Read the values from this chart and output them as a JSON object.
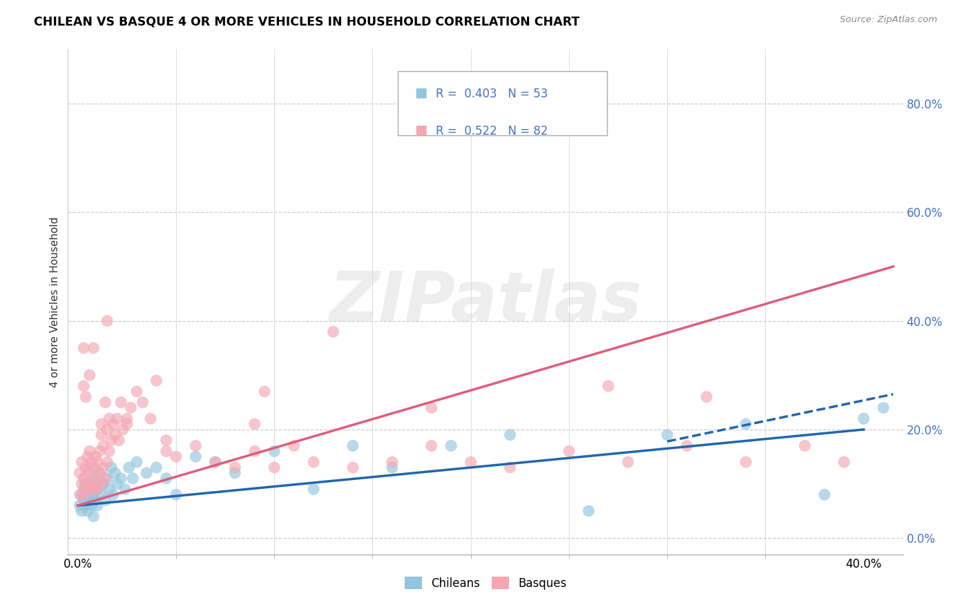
{
  "title": "CHILEAN VS BASQUE 4 OR MORE VEHICLES IN HOUSEHOLD CORRELATION CHART",
  "source": "Source: ZipAtlas.com",
  "ylabel": "4 or more Vehicles in Household",
  "xlim": [
    -0.005,
    0.42
  ],
  "ylim": [
    -0.03,
    0.9
  ],
  "xtick_labels_pos": [
    0.0,
    0.4
  ],
  "xtick_minor_pos": [
    0.05,
    0.1,
    0.15,
    0.2,
    0.25,
    0.3,
    0.35
  ],
  "yticks_right": [
    0.0,
    0.2,
    0.4,
    0.6,
    0.8
  ],
  "chilean_color": "#92c5de",
  "basque_color": "#f4a7b2",
  "trend_blue": "#2166ac",
  "trend_pink": "#e05c7a",
  "legend_R_blue": "0.403",
  "legend_N_blue": "53",
  "legend_R_pink": "0.522",
  "legend_N_pink": "82",
  "watermark": "ZIPatlas",
  "chilean_x": [
    0.001,
    0.002,
    0.002,
    0.003,
    0.003,
    0.004,
    0.004,
    0.005,
    0.005,
    0.006,
    0.006,
    0.007,
    0.007,
    0.008,
    0.008,
    0.009,
    0.009,
    0.01,
    0.01,
    0.011,
    0.012,
    0.013,
    0.014,
    0.015,
    0.016,
    0.017,
    0.018,
    0.019,
    0.02,
    0.022,
    0.024,
    0.026,
    0.028,
    0.03,
    0.035,
    0.04,
    0.045,
    0.05,
    0.06,
    0.07,
    0.08,
    0.1,
    0.12,
    0.14,
    0.16,
    0.19,
    0.22,
    0.26,
    0.3,
    0.34,
    0.38,
    0.4,
    0.41
  ],
  "chilean_y": [
    0.06,
    0.05,
    0.08,
    0.07,
    0.09,
    0.06,
    0.1,
    0.08,
    0.05,
    0.09,
    0.07,
    0.11,
    0.06,
    0.08,
    0.04,
    0.1,
    0.07,
    0.09,
    0.06,
    0.12,
    0.08,
    0.1,
    0.07,
    0.11,
    0.09,
    0.13,
    0.08,
    0.12,
    0.1,
    0.11,
    0.09,
    0.13,
    0.11,
    0.14,
    0.12,
    0.13,
    0.11,
    0.08,
    0.15,
    0.14,
    0.12,
    0.16,
    0.09,
    0.17,
    0.13,
    0.17,
    0.19,
    0.05,
    0.19,
    0.21,
    0.08,
    0.22,
    0.24
  ],
  "basque_x": [
    0.001,
    0.001,
    0.002,
    0.002,
    0.003,
    0.003,
    0.003,
    0.004,
    0.004,
    0.005,
    0.005,
    0.005,
    0.006,
    0.006,
    0.006,
    0.007,
    0.007,
    0.008,
    0.008,
    0.009,
    0.009,
    0.01,
    0.01,
    0.011,
    0.011,
    0.012,
    0.012,
    0.013,
    0.013,
    0.014,
    0.014,
    0.015,
    0.015,
    0.016,
    0.016,
    0.017,
    0.018,
    0.019,
    0.02,
    0.021,
    0.022,
    0.023,
    0.025,
    0.027,
    0.03,
    0.033,
    0.037,
    0.04,
    0.045,
    0.05,
    0.06,
    0.07,
    0.08,
    0.09,
    0.1,
    0.11,
    0.12,
    0.14,
    0.16,
    0.18,
    0.2,
    0.22,
    0.25,
    0.28,
    0.31,
    0.34,
    0.37,
    0.39,
    0.095,
    0.13,
    0.015,
    0.008,
    0.006,
    0.004,
    0.003,
    0.32,
    0.27,
    0.18,
    0.09,
    0.045,
    0.025,
    0.012
  ],
  "basque_y": [
    0.08,
    0.12,
    0.1,
    0.14,
    0.08,
    0.11,
    0.35,
    0.1,
    0.13,
    0.09,
    0.12,
    0.15,
    0.09,
    0.13,
    0.16,
    0.1,
    0.14,
    0.09,
    0.13,
    0.11,
    0.15,
    0.09,
    0.14,
    0.12,
    0.16,
    0.1,
    0.19,
    0.13,
    0.17,
    0.11,
    0.25,
    0.14,
    0.2,
    0.16,
    0.22,
    0.18,
    0.21,
    0.19,
    0.22,
    0.18,
    0.25,
    0.2,
    0.22,
    0.24,
    0.27,
    0.25,
    0.22,
    0.29,
    0.16,
    0.15,
    0.17,
    0.14,
    0.13,
    0.16,
    0.13,
    0.17,
    0.14,
    0.13,
    0.14,
    0.17,
    0.14,
    0.13,
    0.16,
    0.14,
    0.17,
    0.14,
    0.17,
    0.14,
    0.27,
    0.38,
    0.4,
    0.35,
    0.3,
    0.26,
    0.28,
    0.26,
    0.28,
    0.24,
    0.21,
    0.18,
    0.21,
    0.21
  ],
  "trend_blue_x0": 0.0,
  "trend_blue_x1": 0.4,
  "trend_blue_y0": 0.06,
  "trend_blue_y1": 0.2,
  "trend_blue_dash_x0": 0.3,
  "trend_blue_dash_x1": 0.415,
  "trend_blue_dash_y0": 0.178,
  "trend_blue_dash_y1": 0.265,
  "trend_pink_x0": 0.0,
  "trend_pink_x1": 0.415,
  "trend_pink_y0": 0.06,
  "trend_pink_y1": 0.5
}
